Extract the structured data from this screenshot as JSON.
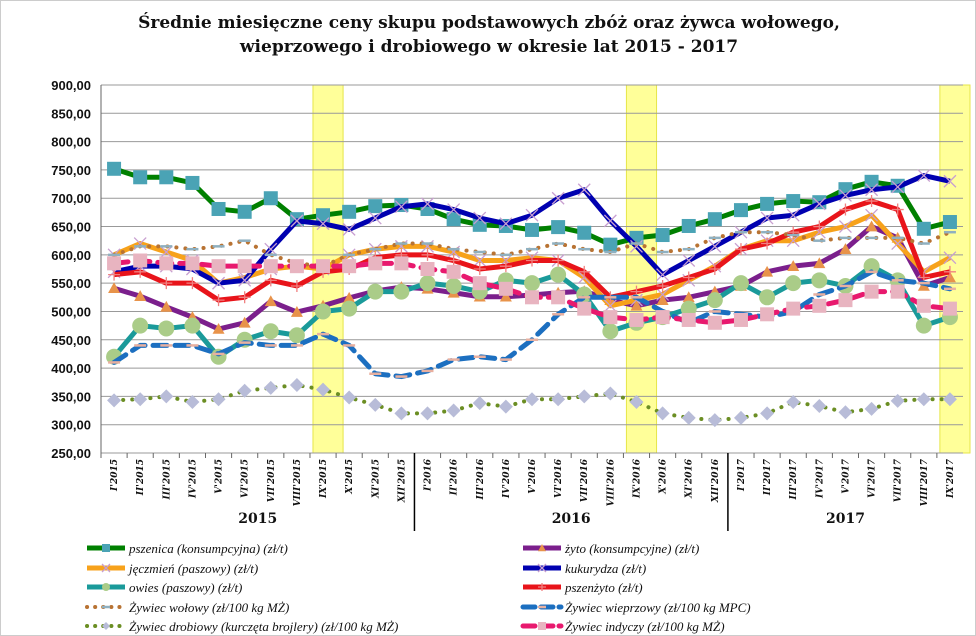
{
  "chart_data": {
    "type": "line",
    "title": [
      "Średnie miesięczne ceny  skupu podstawowych  zbóż oraz żywca wołowego,",
      "wieprzowego i drobiowego w okresie lat 2015  - 2017"
    ],
    "ylim": [
      250,
      900
    ],
    "ytick_step": 50,
    "ytick_labels": [
      "250,00",
      "300,00",
      "350,00",
      "400,00",
      "450,00",
      "500,00",
      "550,00",
      "600,00",
      "650,00",
      "700,00",
      "750,00",
      "800,00",
      "850,00",
      "900,00"
    ],
    "grid": true,
    "legend_placement": "bottom",
    "categories": [
      "I'2015",
      "II'2015",
      "III'2015",
      "IV'2015",
      "V'2015",
      "VI'2015",
      "VII'2015",
      "VIII'2015",
      "IX'2015",
      "X'2015",
      "XI'2015",
      "XII'2015",
      "I'2016",
      "II'2016",
      "III'2016",
      "IV'2016",
      "V'2016",
      "VI'2016",
      "VII'2016",
      "VIII'2016",
      "IX'2016",
      "X'2016",
      "XI'2016",
      "XII'2016",
      "I'2017",
      "II'2017",
      "III'2017",
      "IV'2017",
      "V'2017",
      "VI'2017",
      "VII'2017",
      "VIII'2017",
      "IX'2017"
    ],
    "year_groups": [
      "2015",
      "2016",
      "2017"
    ],
    "highlighted_categories": [
      "IX'2015",
      "IX'2016",
      "IX'2017"
    ],
    "highlight_color": "#ffff99",
    "series": [
      {
        "name": "pszenica (konsumpcyjna) (zł/t)",
        "line": "#008000",
        "marker": "square",
        "marker_color": "#4aa3b5",
        "style": "solid",
        "values": [
          752,
          737,
          737,
          727,
          681,
          676,
          700,
          663,
          670,
          676,
          686,
          688,
          681,
          663,
          653,
          651,
          644,
          649,
          639,
          618,
          630,
          635,
          651,
          663,
          679,
          690,
          695,
          693,
          716,
          729,
          722,
          646,
          658
        ]
      },
      {
        "name": "żyto (konsumpcyjne) (zł/t)",
        "line": "#7b1f8c",
        "marker": "triangle",
        "marker_color": "#e8934a",
        "style": "solid",
        "values": [
          541,
          527,
          508,
          490,
          469,
          480,
          518,
          499,
          510,
          524,
          536,
          543,
          540,
          533,
          526,
          526,
          529,
          533,
          536,
          520,
          510,
          520,
          525,
          535,
          545,
          570,
          580,
          585,
          610,
          650,
          630,
          545,
          560
        ]
      },
      {
        "name": "jęczmień (paszowy) (zł/t)",
        "line": "#f7a21b",
        "marker": "x",
        "marker_color": "#c89fd0",
        "style": "solid",
        "values": [
          600,
          620,
          605,
          590,
          550,
          560,
          575,
          580,
          575,
          600,
          610,
          615,
          615,
          605,
          590,
          590,
          595,
          590,
          560,
          510,
          520,
          530,
          555,
          580,
          610,
          625,
          625,
          640,
          650,
          670,
          620,
          570,
          595
        ]
      },
      {
        "name": "kukurydza (zł/t)",
        "line": "#0000b0",
        "marker": "x",
        "marker_color": "#c89fd0",
        "style": "solid",
        "values": [
          570,
          580,
          580,
          575,
          550,
          555,
          610,
          660,
          655,
          645,
          665,
          685,
          690,
          680,
          665,
          655,
          670,
          700,
          715,
          660,
          615,
          565,
          590,
          615,
          640,
          665,
          670,
          690,
          705,
          715,
          720,
          740,
          730
        ]
      },
      {
        "name": "owies (paszowy) (zł/t)",
        "line": "#1a9a9a",
        "marker": "circle",
        "marker_color": "#aacc88",
        "style": "solid",
        "values": [
          420,
          475,
          470,
          475,
          420,
          450,
          465,
          458,
          500,
          505,
          535,
          535,
          550,
          545,
          535,
          555,
          550,
          565,
          530,
          465,
          480,
          490,
          505,
          520,
          550,
          525,
          550,
          555,
          545,
          580,
          555,
          475,
          490
        ]
      },
      {
        "name": "pszenżyto (zł/t)",
        "line": "#e8141a",
        "marker": "plus",
        "marker_color": "#f08080",
        "style": "solid",
        "values": [
          565,
          570,
          550,
          550,
          520,
          525,
          555,
          545,
          570,
          575,
          595,
          600,
          600,
          590,
          575,
          580,
          590,
          590,
          570,
          525,
          535,
          545,
          560,
          575,
          610,
          620,
          640,
          650,
          680,
          695,
          680,
          560,
          570
        ]
      },
      {
        "name": "Żywiec wołowy (zł/100 kg MŻ)",
        "line": "#b87333",
        "marker": "dash",
        "marker_color": "#8fb0c0",
        "style": "dotted",
        "values": [
          600,
          615,
          615,
          610,
          615,
          625,
          600,
          585,
          580,
          600,
          610,
          620,
          620,
          610,
          605,
          600,
          610,
          620,
          610,
          605,
          620,
          605,
          610,
          630,
          640,
          640,
          635,
          625,
          630,
          630,
          630,
          620,
          640
        ]
      },
      {
        "name": "Żywiec wieprzowy (zł/100 kg MPC)",
        "line": "#1c6fc0",
        "marker": "dash",
        "marker_color": "#e8b0a0",
        "style": "dashed",
        "values": [
          410,
          440,
          440,
          440,
          425,
          445,
          440,
          440,
          460,
          440,
          390,
          385,
          395,
          415,
          420,
          415,
          450,
          495,
          525,
          525,
          525,
          500,
          480,
          500,
          495,
          490,
          500,
          530,
          545,
          570,
          555,
          550,
          540
        ]
      },
      {
        "name": "Żywiec drobiowy (kurczęta brojlery) (zł/100 kg MŻ)",
        "line": "#6b8e23",
        "marker": "diamond",
        "marker_color": "#b8bcd8",
        "style": "dotted",
        "values": [
          343,
          345,
          350,
          340,
          345,
          360,
          365,
          370,
          362,
          348,
          335,
          320,
          320,
          325,
          338,
          332,
          345,
          345,
          350,
          355,
          340,
          320,
          312,
          308,
          312,
          320,
          340,
          333,
          322,
          328,
          342,
          345,
          345
        ]
      },
      {
        "name": "Żywiec indyczy (zł/100 kg MŻ)",
        "line": "#e8196e",
        "marker": "square",
        "marker_color": "#e8b4c0",
        "style": "dashed",
        "values": [
          585,
          590,
          585,
          585,
          580,
          580,
          580,
          580,
          580,
          580,
          585,
          585,
          575,
          570,
          550,
          540,
          525,
          525,
          505,
          490,
          485,
          490,
          485,
          480,
          485,
          495,
          505,
          510,
          520,
          535,
          535,
          510,
          505
        ]
      }
    ]
  }
}
